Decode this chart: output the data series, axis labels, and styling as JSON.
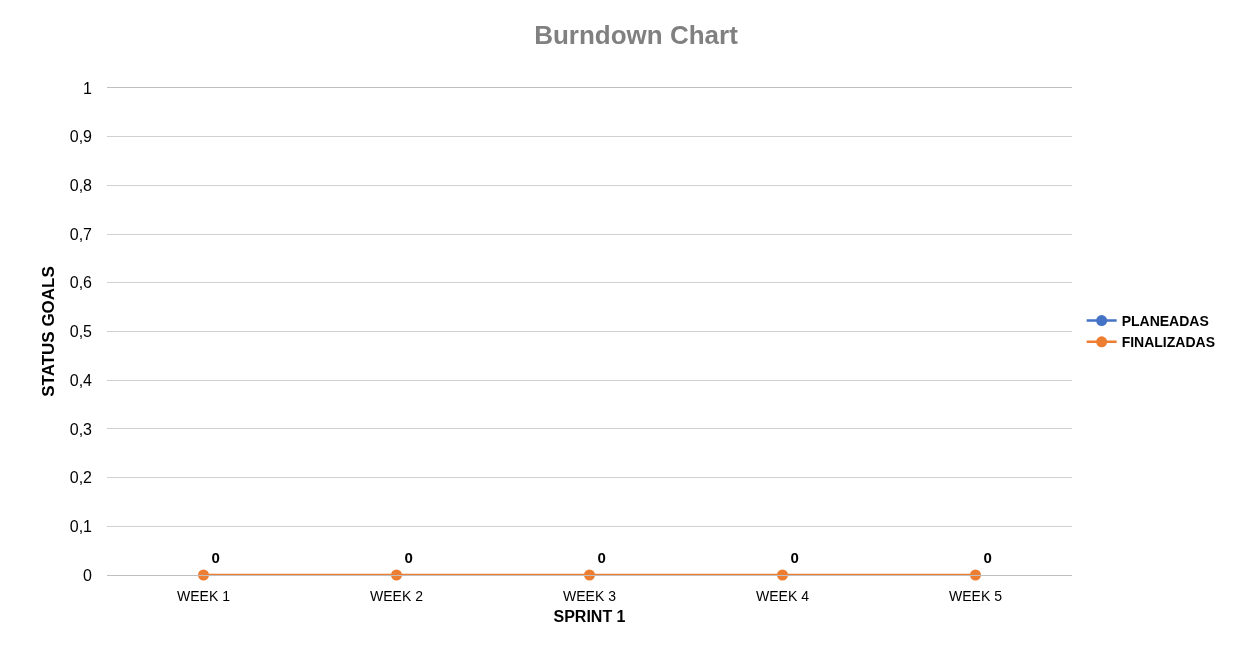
{
  "chart_data": {
    "type": "line",
    "title": "Burndown Chart",
    "xlabel": "SPRINT 1",
    "ylabel": "STATUS GOALS",
    "categories": [
      "WEEK 1",
      "WEEK 2",
      "WEEK 3",
      "WEEK 4",
      "WEEK 5"
    ],
    "series": [
      {
        "name": "PLANEADAS",
        "color": "#4472c4",
        "values": [
          null,
          null,
          null,
          null,
          null
        ]
      },
      {
        "name": "FINALIZADAS",
        "color": "#ed7d31",
        "values": [
          0,
          0,
          0,
          0,
          0
        ]
      }
    ],
    "ylim": [
      0,
      1
    ],
    "yticks": [
      0,
      {
        "value": 0.1,
        "label": "0,1"
      },
      {
        "value": 0.2,
        "label": "0,2"
      },
      {
        "value": 0.3,
        "label": "0,3"
      },
      {
        "value": 0.4,
        "label": "0,4"
      },
      {
        "value": 0.5,
        "label": "0,5"
      },
      {
        "value": 0.6,
        "label": "0,6"
      },
      {
        "value": 0.7,
        "label": "0,7"
      },
      {
        "value": 0.8,
        "label": "0,8"
      },
      {
        "value": 0.9,
        "label": "0,9"
      },
      1
    ],
    "grid": "y",
    "legend": "right",
    "marker": "circle",
    "line_style": "solid",
    "data_labels": true
  }
}
